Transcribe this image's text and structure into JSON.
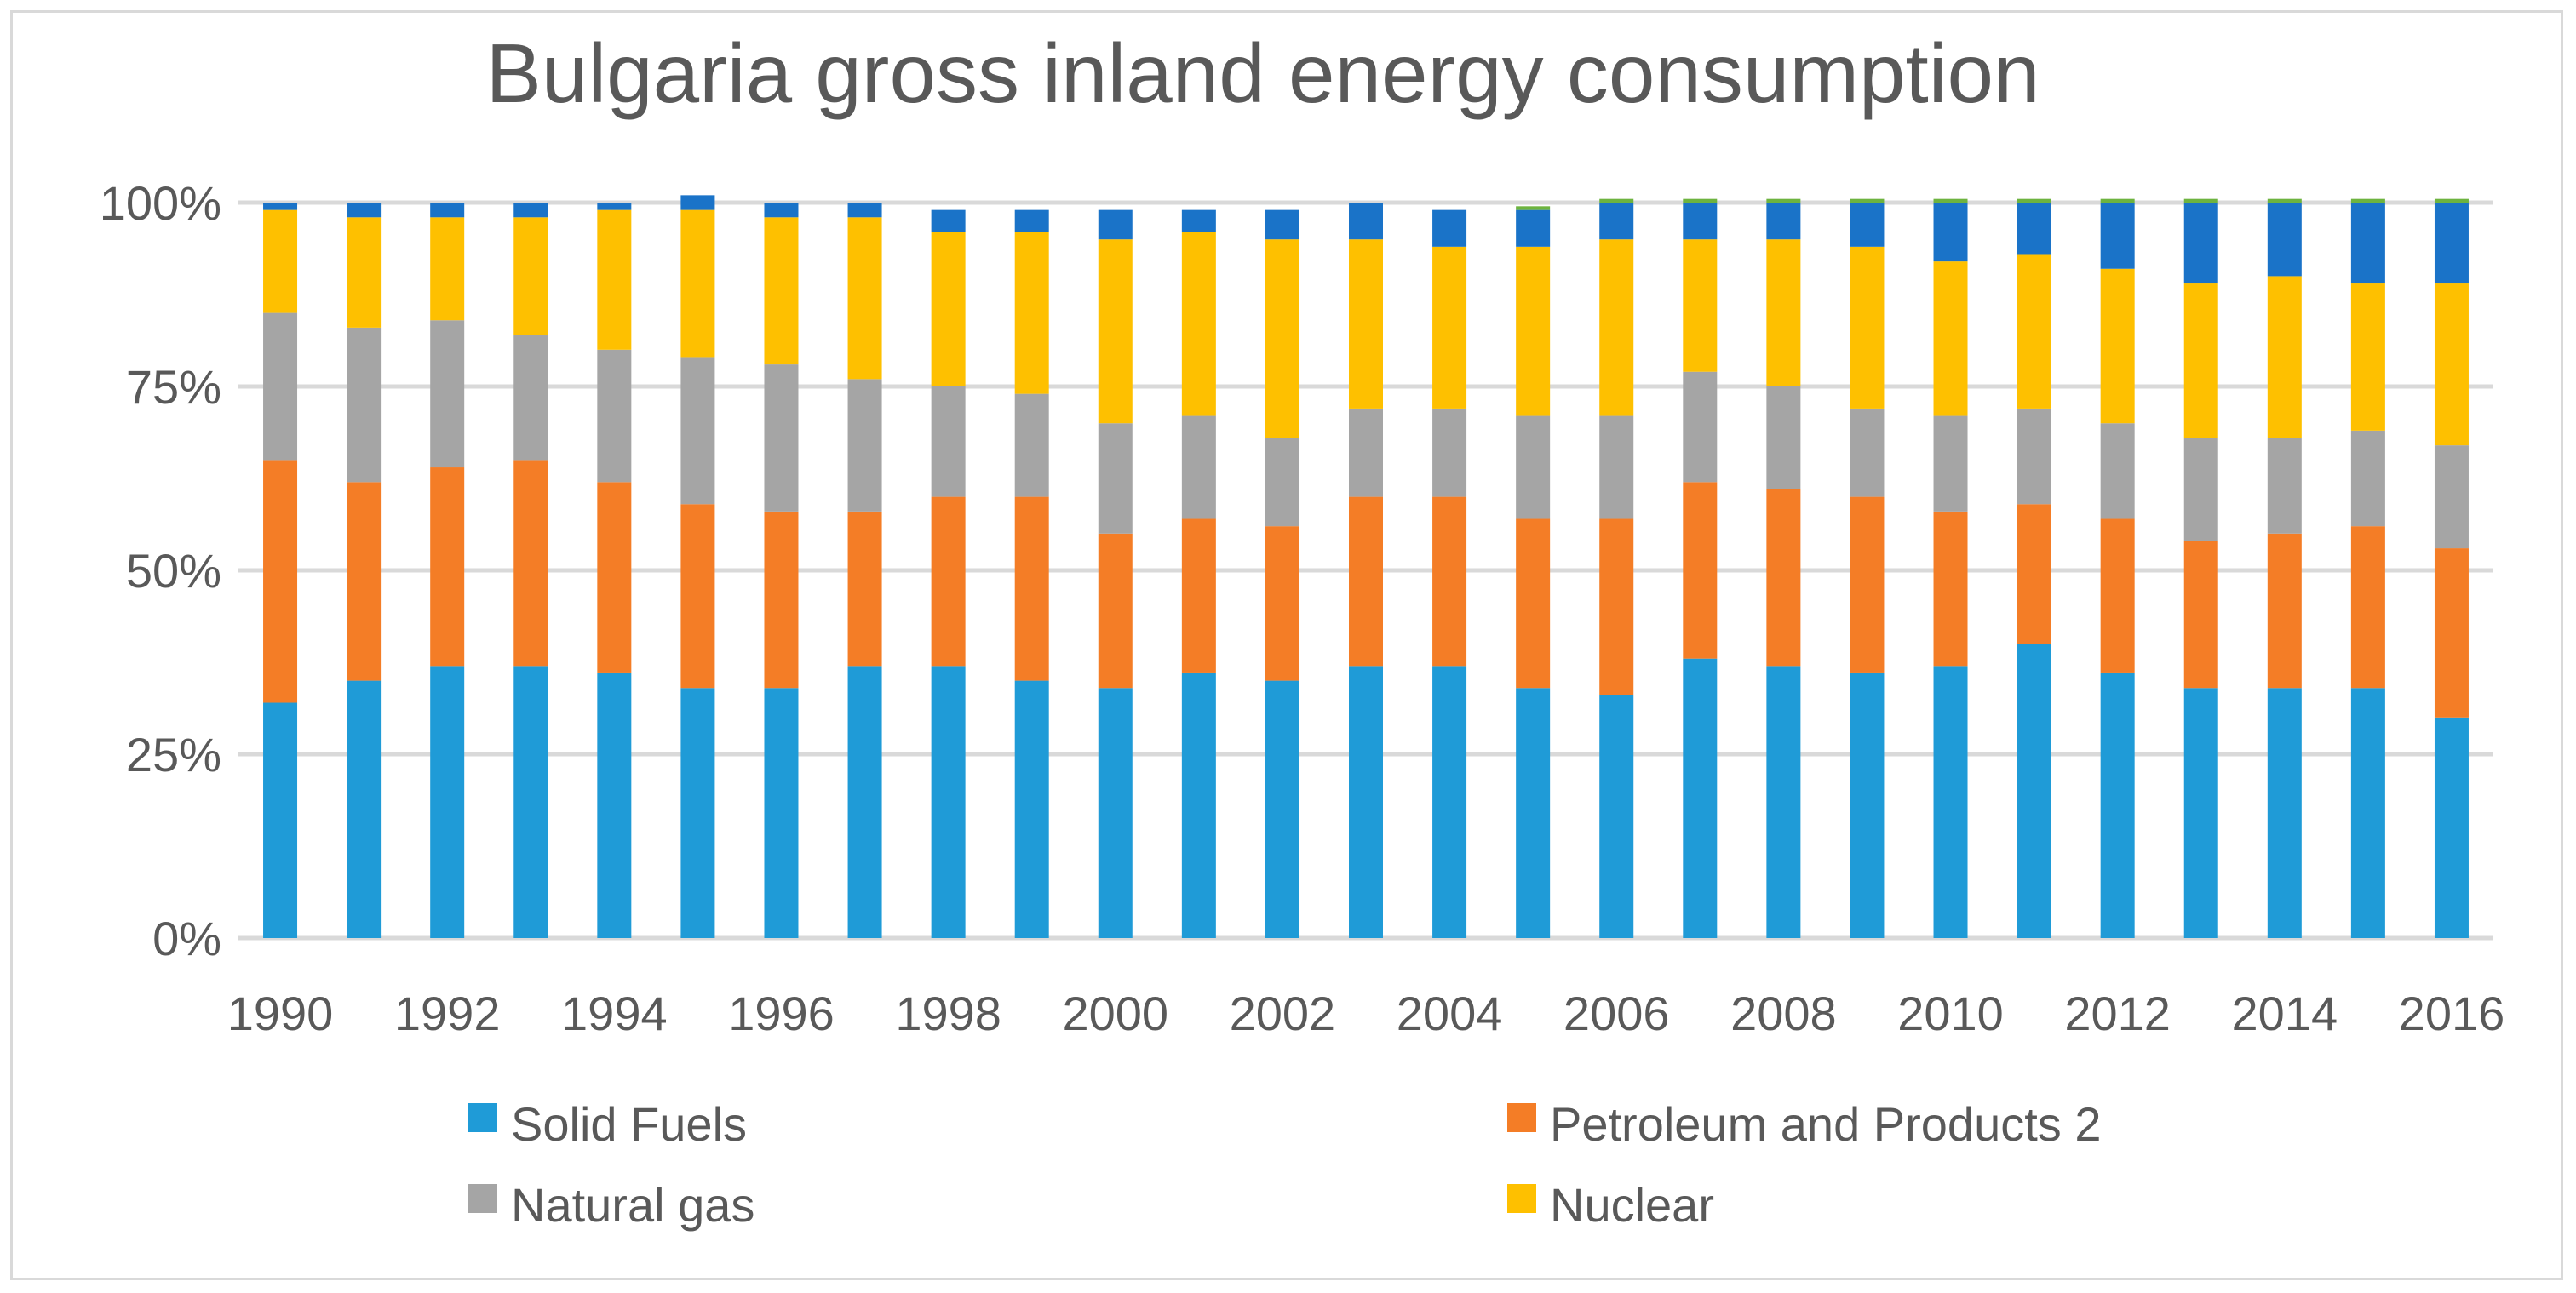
{
  "chart_data": {
    "type": "bar",
    "stacked": true,
    "title": "Bulgaria gross inland energy consumption",
    "xlabel": "",
    "ylabel": "",
    "ylim": [
      0,
      100
    ],
    "yticks": [
      "0%",
      "25%",
      "50%",
      "75%",
      "100%"
    ],
    "x_tick_labels": [
      "1990",
      "1992",
      "1994",
      "1996",
      "1998",
      "2000",
      "2002",
      "2004",
      "2006",
      "2008",
      "2010",
      "2012",
      "2014",
      "2016"
    ],
    "categories": [
      "1990",
      "1991",
      "1992",
      "1993",
      "1994",
      "1995",
      "1996",
      "1997",
      "1998",
      "1999",
      "2000",
      "2001",
      "2002",
      "2003",
      "2004",
      "2005",
      "2006",
      "2007",
      "2008",
      "2009",
      "2010",
      "2011",
      "2012",
      "2013",
      "2014",
      "2015",
      "2016"
    ],
    "grid": true,
    "legend_position": "bottom",
    "series": [
      {
        "name": "Solid Fuels",
        "color": "#1f9bd7",
        "values": [
          32,
          35,
          37,
          37,
          36,
          34,
          34,
          37,
          37,
          35,
          34,
          36,
          35,
          37,
          37,
          34,
          33,
          38,
          37,
          36,
          37,
          40,
          36,
          34,
          34,
          34,
          30
        ]
      },
      {
        "name": "Petroleum and Products  2",
        "color": "#f47d26",
        "values": [
          33,
          27,
          27,
          28,
          26,
          25,
          24,
          21,
          23,
          25,
          21,
          21,
          21,
          23,
          23,
          23,
          24,
          24,
          24,
          24,
          21,
          19,
          21,
          20,
          21,
          22,
          23
        ]
      },
      {
        "name": "Natural gas",
        "color": "#a5a5a5",
        "values": [
          20,
          21,
          20,
          17,
          18,
          20,
          20,
          18,
          15,
          14,
          15,
          14,
          12,
          12,
          12,
          14,
          14,
          15,
          14,
          12,
          13,
          13,
          13,
          14,
          13,
          13,
          14
        ]
      },
      {
        "name": "Nuclear",
        "color": "#fec000",
        "values": [
          14,
          15,
          14,
          16,
          19,
          20,
          20,
          22,
          21,
          22,
          25,
          25,
          27,
          23,
          22,
          23,
          24,
          18,
          20,
          22,
          21,
          21,
          21,
          21,
          22,
          20,
          22
        ]
      },
      {
        "name": "",
        "color": "#1a73c8",
        "values": [
          1,
          2,
          2,
          2,
          1,
          2,
          2,
          2,
          3,
          3,
          4,
          3,
          4,
          5,
          5,
          5,
          5,
          5,
          5,
          6,
          8,
          7,
          9,
          11,
          10,
          11,
          11
        ]
      },
      {
        "name": "",
        "color": "#6db33f",
        "values": [
          0,
          0,
          0,
          0,
          0,
          0,
          0,
          0,
          0,
          0,
          0,
          0,
          0,
          0,
          0,
          0.5,
          0.5,
          0.5,
          0.5,
          0.5,
          0.5,
          0.5,
          0.5,
          0.5,
          0.5,
          0.5,
          0.5
        ]
      }
    ],
    "legend": [
      "Solid Fuels",
      "Petroleum and Products  2",
      "Natural gas",
      "Nuclear"
    ]
  }
}
